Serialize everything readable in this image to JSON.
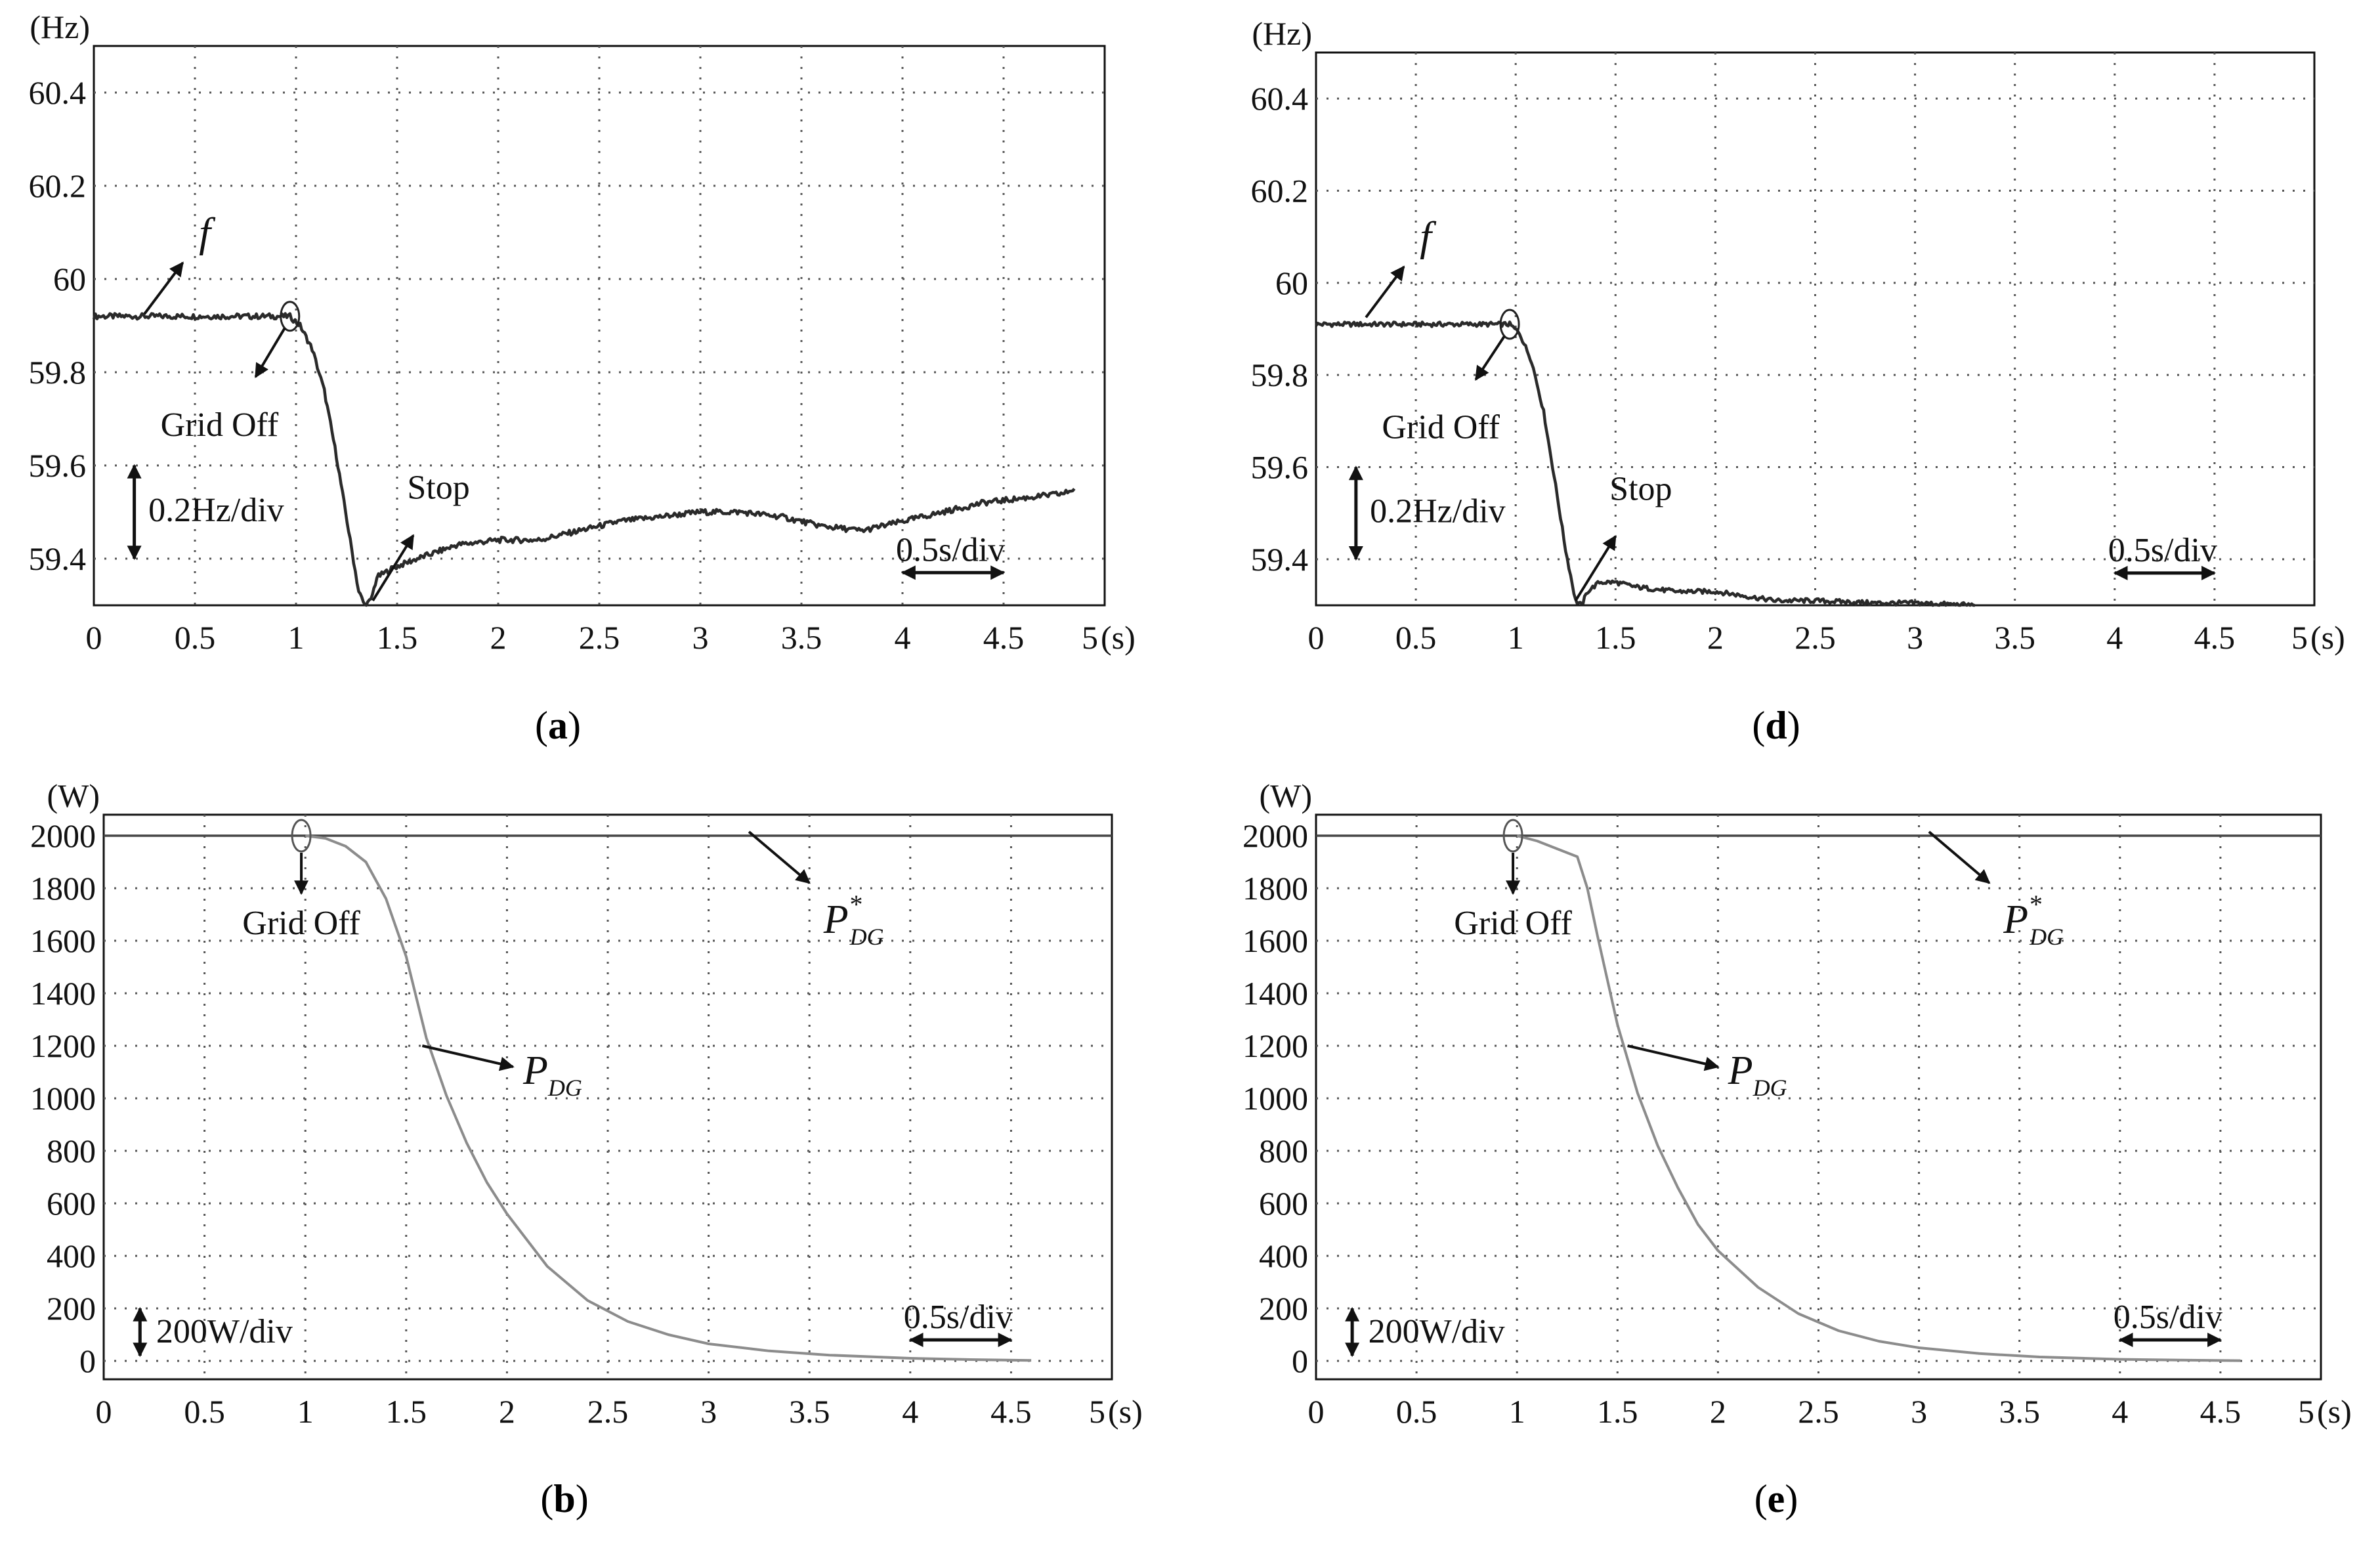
{
  "figure": {
    "colors": {
      "frame": "#111111",
      "grid": "#555555",
      "freq_trace": "#2a2a2a",
      "power_trace": "#8c8c8c",
      "ref_line": "#444444",
      "arrow": "#111111"
    }
  },
  "chart_data": [
    {
      "id": "a",
      "type": "line",
      "caption": {
        "open": "(",
        "letter": "a",
        "close": ")"
      },
      "unit_label": "(Hz)",
      "x_unit_label": "(s)",
      "xlim": [
        0,
        5
      ],
      "ylim": [
        59.3,
        60.5
      ],
      "x_ticks": [
        0,
        0.5,
        1,
        1.5,
        2,
        2.5,
        3,
        3.5,
        4,
        4.5,
        5
      ],
      "x_tick_labels": [
        "0",
        "0.5",
        "1",
        "1.5",
        "2",
        "2.5",
        "3",
        "3.5",
        "4",
        "4.5",
        "5"
      ],
      "y_ticks": [
        59.4,
        59.6,
        59.8,
        60,
        60.2,
        60.4
      ],
      "y_tick_labels": [
        "59.4",
        "59.6",
        "59.8",
        "60",
        "60.2",
        "60.4"
      ],
      "grid": true,
      "series": [
        {
          "name": "f",
          "color": "#2a2a2a",
          "noise": 0.006,
          "x": [
            0,
            0.5,
            0.9,
            0.97,
            1.02,
            1.08,
            1.14,
            1.2,
            1.26,
            1.31,
            1.34,
            1.37,
            1.4,
            1.48,
            1.6,
            1.8,
            2.0,
            2.2,
            2.4,
            2.6,
            2.8,
            3.0,
            3.2,
            3.4,
            3.6,
            3.8,
            4.0,
            4.2,
            4.4,
            4.6,
            4.8,
            4.85
          ],
          "y": [
            59.92,
            59.92,
            59.92,
            59.92,
            59.9,
            59.85,
            59.76,
            59.62,
            59.46,
            59.33,
            59.3,
            59.31,
            59.36,
            59.38,
            59.4,
            59.43,
            59.44,
            59.44,
            59.46,
            59.48,
            59.49,
            59.5,
            59.5,
            59.49,
            59.47,
            59.46,
            59.48,
            59.5,
            59.52,
            59.53,
            59.54,
            59.55
          ]
        }
      ],
      "annotations": {
        "trace_label": "f",
        "event_label": "Grid Off",
        "stop_label": "Stop",
        "y_scale_label": "0.2Hz/div",
        "x_scale_label": "0.5s/div"
      }
    },
    {
      "id": "d",
      "type": "line",
      "caption": {
        "open": "(",
        "letter": "d",
        "close": ")"
      },
      "unit_label": "(Hz)",
      "x_unit_label": "(s)",
      "xlim": [
        0,
        5
      ],
      "ylim": [
        59.3,
        60.5
      ],
      "x_ticks": [
        0,
        0.5,
        1,
        1.5,
        2,
        2.5,
        3,
        3.5,
        4,
        4.5,
        5
      ],
      "x_tick_labels": [
        "0",
        "0.5",
        "1",
        "1.5",
        "2",
        "2.5",
        "3",
        "3.5",
        "4",
        "4.5",
        "5"
      ],
      "y_ticks": [
        59.4,
        59.6,
        59.8,
        60,
        60.2,
        60.4
      ],
      "y_tick_labels": [
        "59.4",
        "59.6",
        "59.8",
        "60",
        "60.2",
        "60.4"
      ],
      "grid": true,
      "series": [
        {
          "name": "f",
          "color": "#2a2a2a",
          "noise": 0.005,
          "x": [
            0,
            0.5,
            0.9,
            0.97,
            1.02,
            1.08,
            1.14,
            1.2,
            1.25,
            1.3,
            1.33,
            1.36,
            1.42,
            1.5,
            1.6,
            1.8,
            2.0,
            2.15,
            2.3,
            2.5,
            2.8,
            3.0,
            3.3
          ],
          "y": [
            59.91,
            59.91,
            59.91,
            59.91,
            59.89,
            59.83,
            59.72,
            59.56,
            59.42,
            59.31,
            59.3,
            59.33,
            59.35,
            59.35,
            59.34,
            59.33,
            59.33,
            59.32,
            59.31,
            59.31,
            59.305,
            59.305,
            59.3
          ]
        }
      ],
      "annotations": {
        "trace_label": "f",
        "event_label": "Grid Off",
        "stop_label": "Stop",
        "y_scale_label": "0.2Hz/div",
        "x_scale_label": "0.5s/div"
      }
    },
    {
      "id": "b",
      "type": "line",
      "caption": {
        "open": "(",
        "letter": "b",
        "close": ")"
      },
      "unit_label": "(W)",
      "x_unit_label": "(s)",
      "xlim": [
        0,
        5
      ],
      "ylim": [
        -70,
        2080
      ],
      "x_ticks": [
        0,
        0.5,
        1,
        1.5,
        2,
        2.5,
        3,
        3.5,
        4,
        4.5,
        5
      ],
      "x_tick_labels": [
        "0",
        "0.5",
        "1",
        "1.5",
        "2",
        "2.5",
        "3",
        "3.5",
        "4",
        "4.5",
        "5"
      ],
      "y_ticks": [
        0,
        200,
        400,
        600,
        800,
        1000,
        1200,
        1400,
        1600,
        1800,
        2000
      ],
      "y_tick_labels": [
        "0",
        "200",
        "400",
        "600",
        "800",
        "1000",
        "1200",
        "1400",
        "1600",
        "1800",
        "2000"
      ],
      "grid": true,
      "series": [
        {
          "name": "P_DG*",
          "color": "#444444",
          "x": [
            0,
            5
          ],
          "y": [
            2000,
            2000
          ]
        },
        {
          "name": "P_DG",
          "color": "#8c8c8c",
          "x": [
            1.0,
            1.1,
            1.2,
            1.3,
            1.4,
            1.5,
            1.6,
            1.7,
            1.8,
            1.9,
            2.0,
            2.2,
            2.4,
            2.6,
            2.8,
            3.0,
            3.3,
            3.6,
            4.0,
            4.3,
            4.6
          ],
          "y": [
            2000,
            1990,
            1960,
            1900,
            1760,
            1540,
            1230,
            1010,
            830,
            680,
            560,
            360,
            230,
            150,
            100,
            65,
            38,
            22,
            10,
            5,
            2
          ]
        }
      ],
      "annotations": {
        "event_label": "Grid Off",
        "ref_symbol": "P",
        "ref_superscript": "*",
        "ref_subscript": "DG",
        "meas_symbol": "P",
        "meas_subscript": "DG",
        "y_scale_label": "200W/div",
        "x_scale_label": "0.5s/div"
      }
    },
    {
      "id": "e",
      "type": "line",
      "caption": {
        "open": "(",
        "letter": "e",
        "close": ")"
      },
      "unit_label": "(W)",
      "x_unit_label": "(s)",
      "xlim": [
        0,
        5
      ],
      "ylim": [
        -70,
        2080
      ],
      "x_ticks": [
        0,
        0.5,
        1,
        1.5,
        2,
        2.5,
        3,
        3.5,
        4,
        4.5,
        5
      ],
      "x_tick_labels": [
        "0",
        "0.5",
        "1",
        "1.5",
        "2",
        "2.5",
        "3",
        "3.5",
        "4",
        "4.5",
        "5"
      ],
      "y_ticks": [
        0,
        200,
        400,
        600,
        800,
        1000,
        1200,
        1400,
        1600,
        1800,
        2000
      ],
      "y_tick_labels": [
        "0",
        "200",
        "400",
        "600",
        "800",
        "1000",
        "1200",
        "1400",
        "1600",
        "1800",
        "2000"
      ],
      "grid": true,
      "series": [
        {
          "name": "P_DG*",
          "color": "#444444",
          "x": [
            0,
            5
          ],
          "y": [
            2000,
            2000
          ]
        },
        {
          "name": "P_DG",
          "color": "#8c8c8c",
          "x": [
            1.0,
            1.1,
            1.2,
            1.3,
            1.35,
            1.4,
            1.5,
            1.6,
            1.7,
            1.8,
            1.9,
            2.0,
            2.2,
            2.4,
            2.6,
            2.8,
            3.0,
            3.3,
            3.6,
            4.0,
            4.3,
            4.6
          ],
          "y": [
            2000,
            1980,
            1950,
            1920,
            1800,
            1620,
            1280,
            1020,
            820,
            660,
            520,
            420,
            280,
            180,
            115,
            75,
            50,
            28,
            15,
            6,
            3,
            1
          ]
        }
      ],
      "annotations": {
        "event_label": "Grid Off",
        "ref_symbol": "P",
        "ref_superscript": "*",
        "ref_subscript": "DG",
        "meas_symbol": "P",
        "meas_subscript": "DG",
        "y_scale_label": "200W/div",
        "x_scale_label": "0.5s/div"
      }
    }
  ]
}
